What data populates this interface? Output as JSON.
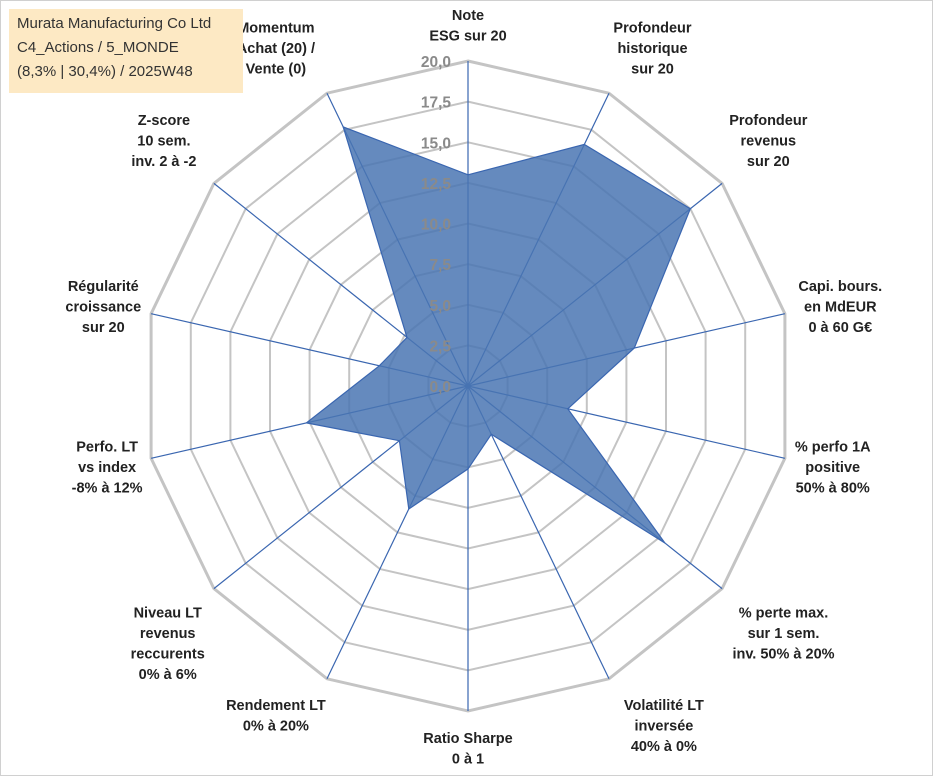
{
  "title_lines": [
    "Murata Manufacturing Co Ltd",
    "C4_Actions / 5_MONDE",
    "(8,3% | 30,4%) / 2025W48"
  ],
  "colors": {
    "fill": "#4a76b3",
    "stroke": "#3a66b0",
    "grid": "#c4c4c4",
    "spokes": "#3a66b0"
  },
  "chart_data": {
    "type": "radar",
    "rmin": 0,
    "rmax": 20,
    "ticks": [
      "0,0",
      "2,5",
      "5,0",
      "7,5",
      "10,0",
      "12,5",
      "15,0",
      "17,5",
      "20,0"
    ],
    "axes": [
      {
        "label": [
          "Note",
          "ESG sur 20"
        ],
        "value": 13
      },
      {
        "label": [
          "Profondeur",
          "historique",
          "sur 20"
        ],
        "value": 16.5
      },
      {
        "label": [
          "Profondeur",
          "revenus",
          "sur 20"
        ],
        "value": 17.5
      },
      {
        "label": [
          "Capi. bours.",
          "en MdEUR",
          "0 à 60 G€"
        ],
        "value": 10.5
      },
      {
        "label": [
          "% perfo 1A",
          "positive",
          "50% à 80%"
        ],
        "value": 6.3
      },
      {
        "label": [
          "% perte max.",
          "sur 1 sem.",
          "inv. 50% à 20%"
        ],
        "value": 15.5
      },
      {
        "label": [
          "Volatilité LT",
          "inversée",
          "40% à 0%"
        ],
        "value": 3.3
      },
      {
        "label": [
          "Ratio Sharpe",
          "0 à 1"
        ],
        "value": 5.1
      },
      {
        "label": [
          "Rendement LT",
          "0% à 20%"
        ],
        "value": 8.4
      },
      {
        "label": [
          "Niveau LT",
          "revenus",
          "reccurents",
          "0% à 6%"
        ],
        "value": 5.4
      },
      {
        "label": [
          "Perfo. LT",
          "vs index",
          "-8% à 12%"
        ],
        "value": 10.2
      },
      {
        "label": [
          "Régularité",
          "croissance",
          "sur 20"
        ],
        "value": 5.6
      },
      {
        "label": [
          "Z-score",
          "10 sem.",
          "inv. 2 à -2"
        ],
        "value": 4.8
      },
      {
        "label": [
          "Momentum",
          "Achat (20) /",
          "Vente (0)"
        ],
        "value": 17.7
      }
    ]
  }
}
